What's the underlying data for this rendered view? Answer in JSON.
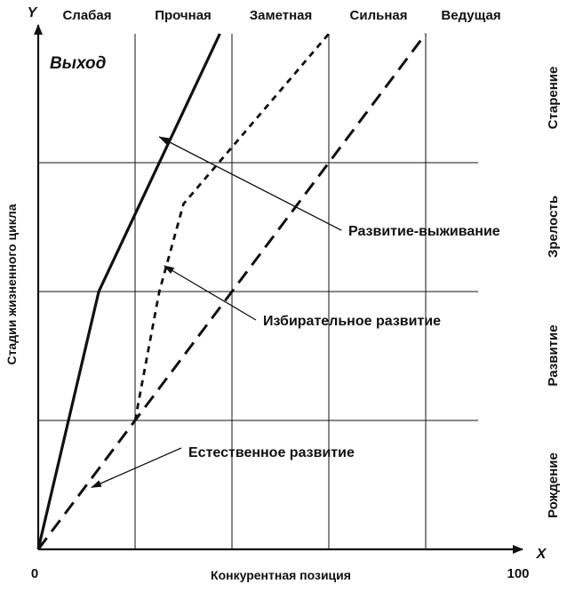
{
  "chart_data": {
    "type": "line",
    "axis_y_letter": "Y",
    "axis_x_letter": "X",
    "x_min_label": "0",
    "x_max_label": "100",
    "xlabel": "Конкурентная позиция",
    "ylabel": "Стадии жизненного цикла",
    "exit_label": "Выход",
    "competitive_positions": [
      "Слабая",
      "Прочная",
      "Заметная",
      "Сильная",
      "Ведущая"
    ],
    "life_cycle_stages": [
      "Рождение",
      "Развитие",
      "Зрелость",
      "Старение"
    ],
    "series": [
      {
        "name": "Развитие-выживание",
        "style": "solid",
        "points": [
          [
            0,
            0
          ],
          [
            12.5,
            50
          ],
          [
            37.5,
            100
          ]
        ]
      },
      {
        "name": "Избирательное развитие",
        "style": "dotted",
        "points": [
          [
            20,
            25
          ],
          [
            25,
            50
          ],
          [
            30,
            67
          ],
          [
            60,
            100
          ]
        ]
      },
      {
        "name": "Естественное развитие",
        "style": "dashed",
        "points": [
          [
            0,
            0
          ],
          [
            80,
            100
          ]
        ]
      }
    ],
    "annotations": [
      {
        "text": "Развитие-выживание",
        "points_to": [
          25,
          80
        ]
      },
      {
        "text": "Избирательное развитие",
        "points_to": [
          26,
          55
        ]
      },
      {
        "text": "Естественное развитие",
        "points_to": [
          11,
          12
        ]
      }
    ],
    "xlim": [
      0,
      100
    ],
    "ylim": [
      0,
      100
    ],
    "grid": true
  }
}
